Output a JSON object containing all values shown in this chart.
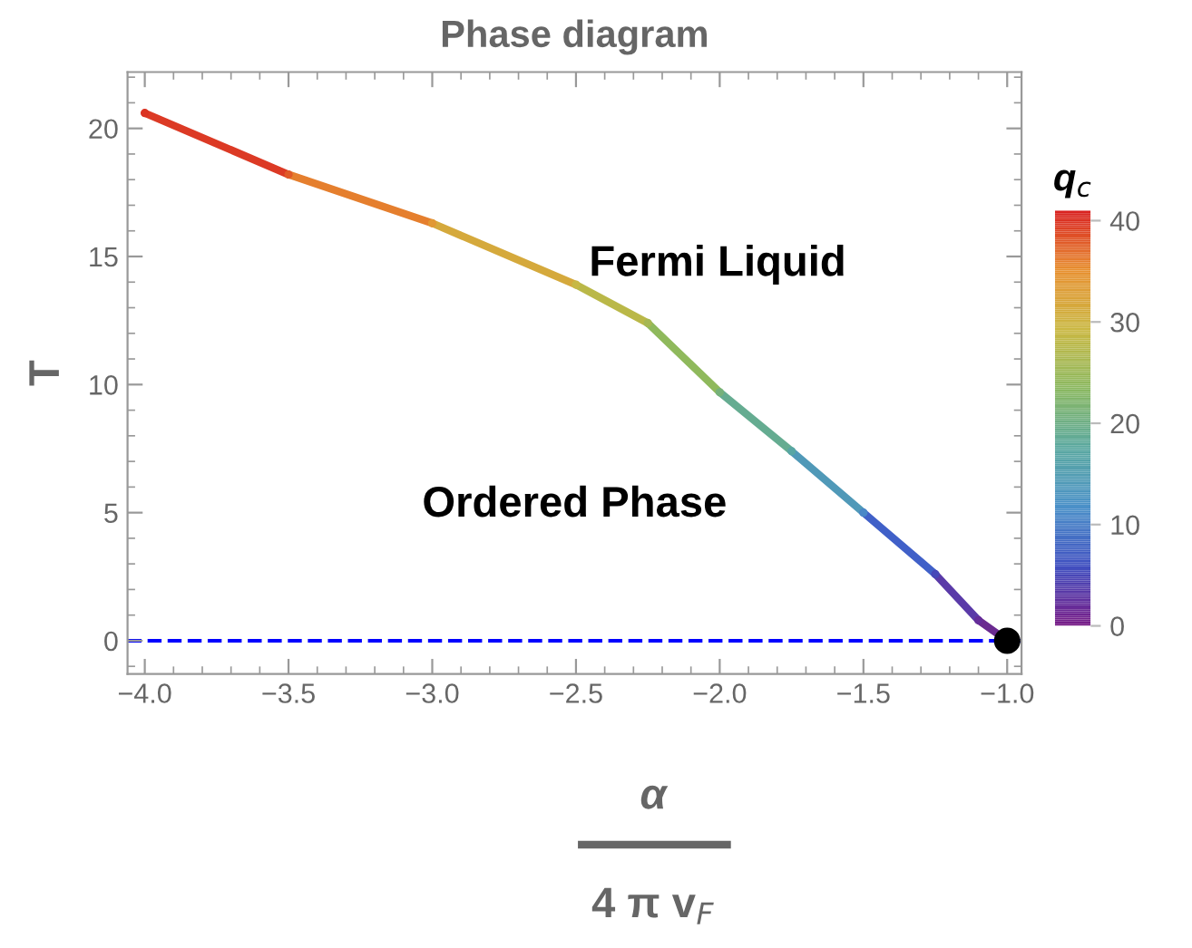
{
  "chart_data": {
    "type": "line",
    "title": "Phase diagram",
    "xlabel": "α\n4 π v$_{F}$",
    "ylabel": "T",
    "clabel": "q$_{c}$",
    "series": [
      {
        "x": [
          -4,
          -3.5
        ],
        "values": [
          20.6,
          18.2
        ],
        "color": "#dc3a25"
      },
      {
        "x": [
          -3.5,
          -3
        ],
        "values": [
          18.2,
          16.3
        ],
        "color": "#e57f2e"
      },
      {
        "x": [
          -3,
          -2.5
        ],
        "values": [
          16.3,
          13.9
        ],
        "color": "#d5a93c"
      },
      {
        "x": [
          -2.5,
          -2.25
        ],
        "values": [
          13.9,
          12.4
        ],
        "color": "#bab848"
      },
      {
        "x": [
          -2.25,
          -2
        ],
        "values": [
          12.4,
          9.7
        ],
        "color": "#8fb95c"
      },
      {
        "x": [
          -2,
          -1.75
        ],
        "values": [
          9.7,
          7.4
        ],
        "color": "#65ac91"
      },
      {
        "x": [
          -1.75,
          -1.5
        ],
        "values": [
          7.4,
          5.0
        ],
        "color": "#5099b8"
      },
      {
        "x": [
          -1.5,
          -1.25
        ],
        "values": [
          5.0,
          2.6
        ],
        "color": "#4060c8"
      },
      {
        "x": [
          -1.25,
          -1.1
        ],
        "values": [
          2.6,
          0.8
        ],
        "color": "#5a3aa8"
      },
      {
        "x": [
          -1.1,
          -1.0
        ],
        "values": [
          0.8,
          0
        ],
        "color": "#6a2a90"
      },
      {
        "type": "scatter",
        "x": [
          -4,
          -3.5,
          -3,
          -2.5,
          -2.25,
          -2,
          -1.75,
          -1.5,
          -1.25,
          -1.1
        ],
        "values": [
          20.6,
          18.2,
          16.3,
          13.9,
          12.4,
          9.7,
          7.4,
          5.0,
          2.6,
          0.8
        ],
        "cvalues": [
          40,
          38,
          34,
          29,
          26,
          21,
          17,
          11,
          5,
          2
        ],
        "colors": [
          "#db3423",
          "#e05a28",
          "#e19834",
          "#c7b844",
          "#a6b853",
          "#76b17b",
          "#58a6a4",
          "#4988c7",
          "#4748b8",
          "#652d9a"
        ]
      },
      {
        "type": "scatter",
        "x": [
          -1.0
        ],
        "values": [
          0
        ],
        "color": "#000000"
      }
    ],
    "ref_lines": [
      {
        "axis": "y",
        "value": 0,
        "color": "#0000ff",
        "line_style": "dashed"
      }
    ],
    "annotations": [
      "Fermi Liquid",
      "Ordered Phase"
    ],
    "xlim": [
      -4.06,
      -0.95
    ],
    "ylim": [
      -1.3,
      22.2
    ],
    "xticks": [
      {
        "value": -4,
        "label": "−4.0"
      },
      {
        "value": -3.5,
        "label": "−3.5"
      },
      {
        "value": -3,
        "label": "−3.0"
      },
      {
        "value": -2.5,
        "label": "−2.5"
      },
      {
        "value": -2,
        "label": "−2.0"
      },
      {
        "value": -1.5,
        "label": "−1.5"
      },
      {
        "value": -1,
        "label": "−1.0"
      }
    ],
    "yticks": [
      0,
      5,
      10,
      15,
      20
    ],
    "clim": [
      0,
      41
    ],
    "cticks": [
      0,
      10,
      20,
      30,
      40
    ],
    "grid": false
  }
}
